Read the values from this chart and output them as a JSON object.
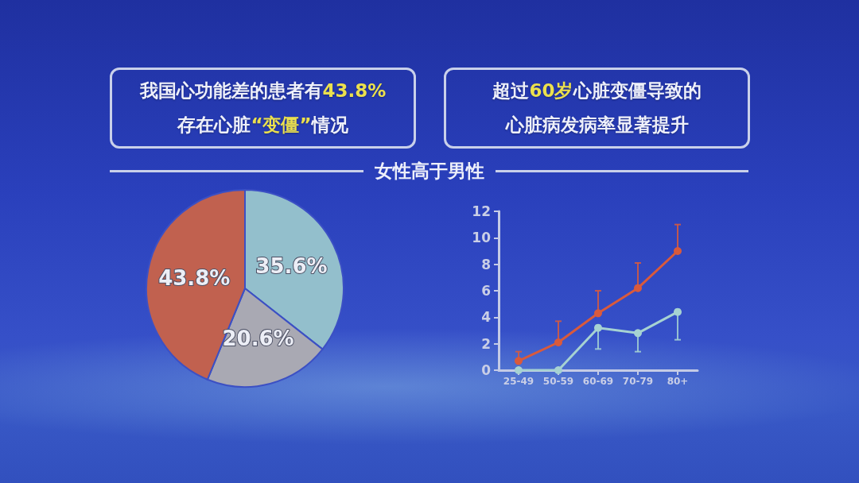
{
  "chart_data": [
    {
      "type": "pie",
      "title": "我国心功能差的患者有43.8%存在心脏“变僵”情况",
      "categories": [
        null,
        null,
        null
      ],
      "values": [
        35.6,
        20.6,
        43.8
      ],
      "colors": [
        "#93bfcc",
        "#a9a9b3",
        "#c1614f"
      ],
      "value_labels": [
        "35.6%",
        "20.6%",
        "43.8%"
      ]
    },
    {
      "type": "line",
      "title": "超过60岁心脏变僵导致的心脏病发病率显著提升",
      "subtitle": "女性高于男性",
      "categories": [
        "25-49",
        "50-59",
        "60-69",
        "70-79",
        "80+"
      ],
      "series": [
        {
          "color": "#d95a3c",
          "values": [
            0.7,
            2.1,
            4.3,
            6.2,
            9.0
          ],
          "errors": [
            [
              0.7,
              1.4
            ],
            [
              2.1,
              3.7
            ],
            [
              4.3,
              6.0
            ],
            [
              6.2,
              8.1
            ],
            [
              9.0,
              11.0
            ]
          ]
        },
        {
          "color": "#a6d2d2",
          "values": [
            0,
            0,
            3.2,
            2.8,
            4.4
          ],
          "errors": [
            null,
            null,
            [
              1.6,
              3.2
            ],
            [
              1.4,
              2.8
            ],
            [
              2.3,
              4.4
            ]
          ]
        }
      ],
      "ylim": [
        0,
        12
      ],
      "yticks": [
        0,
        2,
        4,
        6,
        8,
        10,
        12
      ],
      "grid": false,
      "marker": "circle",
      "line_style": "solid"
    }
  ]
}
